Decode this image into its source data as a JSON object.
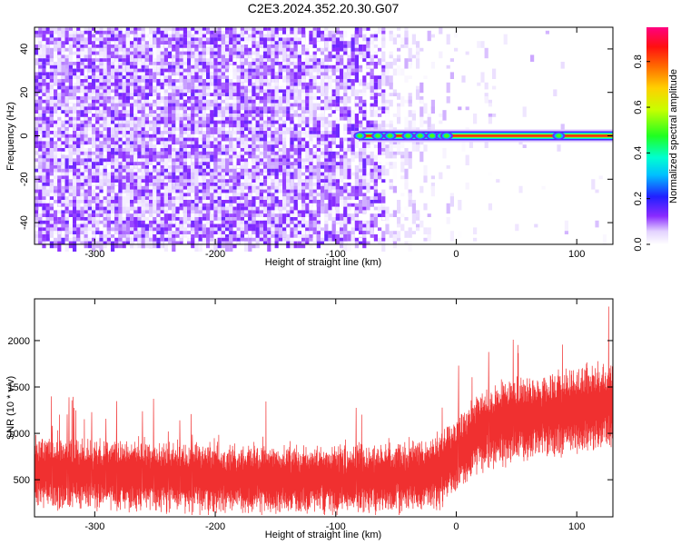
{
  "title": "C2E3.2024.352.20.30.G07",
  "colors": {
    "snr_line": "#f03030",
    "axis": "#000000",
    "background": "#ffffff"
  },
  "chart_data": [
    {
      "type": "heatmap",
      "panel": "top",
      "title": "C2E3.2024.352.20.30.G07",
      "xlabel": "Height of straight line (km)",
      "ylabel": "Frequency (Hz)",
      "xlim": [
        -350,
        130
      ],
      "ylim": [
        -50,
        50
      ],
      "xticks": [
        -300,
        -200,
        -100,
        0,
        100
      ],
      "yticks": [
        -40,
        -20,
        0,
        20,
        40
      ],
      "colorbar": {
        "label": "Normalized spectral amplitude",
        "range": [
          0.0,
          0.95
        ],
        "ticks": [
          0.0,
          0.2,
          0.4,
          0.6,
          0.8
        ],
        "colormap": "rainbow (white–purple–blue–cyan–green–yellow–orange–red–magenta)"
      },
      "features": {
        "noise_region": [
          -350,
          -10
        ],
        "noise_amplitude_typical": [
          0.0,
          0.15
        ],
        "signal_line_frequency_hz": 0,
        "signal_start_km": -80,
        "signal_end_km": 130,
        "signal_core_amplitude": 0.85,
        "signal_blobs_km": [
          -80,
          -65,
          -55,
          -40,
          -30,
          -20,
          -12,
          -8,
          85
        ]
      },
      "grid": false
    },
    {
      "type": "line",
      "panel": "bottom",
      "xlabel": "Height of straight line (km)",
      "ylabel": "SNR (10 * v/v)",
      "xlim": [
        -350,
        130
      ],
      "ylim": [
        100,
        2450
      ],
      "xticks": [
        -300,
        -200,
        -100,
        0,
        100
      ],
      "yticks": [
        500,
        1000,
        1500,
        2000
      ],
      "series": [
        {
          "envelope_x": [
            -350,
            -300,
            -250,
            -200,
            -150,
            -100,
            -50,
            -20,
            0,
            20,
            50,
            100,
            130
          ],
          "mean_y": [
            580,
            560,
            530,
            520,
            510,
            500,
            520,
            560,
            750,
            1050,
            1150,
            1250,
            1300
          ],
          "spread_y": [
            330,
            330,
            320,
            320,
            320,
            320,
            330,
            340,
            360,
            380,
            390,
            400,
            400
          ],
          "peak_max": 2430,
          "trough_min": 120
        }
      ],
      "grid": false
    }
  ]
}
